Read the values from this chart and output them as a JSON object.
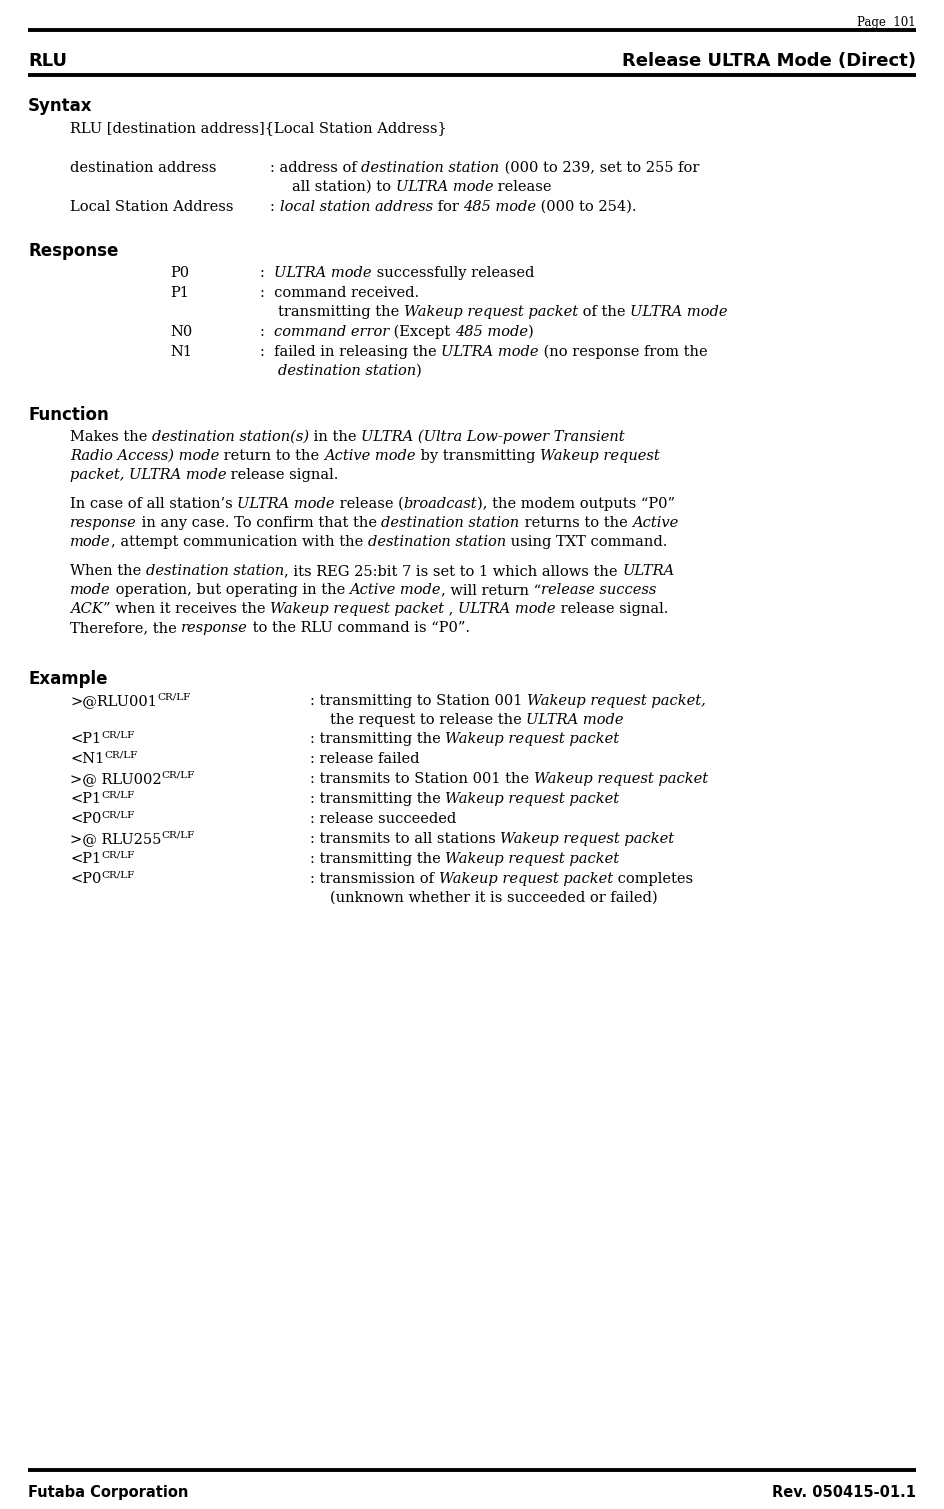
{
  "page_num": "Page  101",
  "header_left": "RLU",
  "header_right": "Release ULTRA Mode (Direct)",
  "footer_left": "Futaba Corporation",
  "footer_right": "Rev. 050415-01.1",
  "bg_color": "#ffffff",
  "text_color": "#000000"
}
